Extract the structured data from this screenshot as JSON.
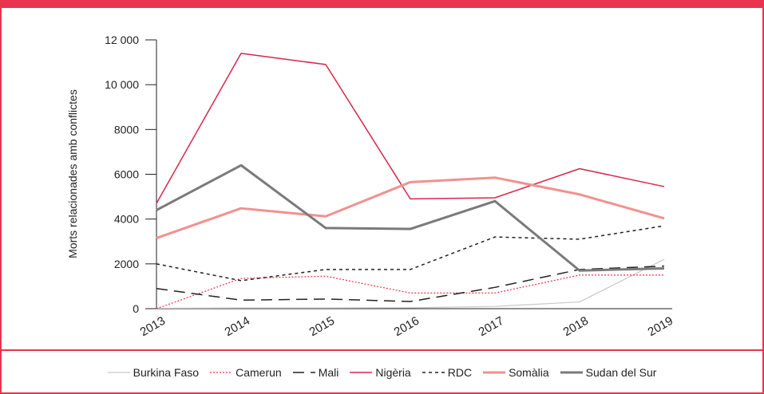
{
  "chart_data": {
    "type": "line",
    "title": "",
    "xlabel": "",
    "ylabel": "Morts relacionades amb conflictes",
    "x": [
      "2013",
      "2014",
      "2015",
      "2016",
      "2017",
      "2018",
      "2019"
    ],
    "ylim": [
      0,
      12000
    ],
    "yticks": [
      0,
      2000,
      4000,
      6000,
      8000,
      10000,
      12000
    ],
    "ytick_labels": [
      "0",
      "2000",
      "4000",
      "6000",
      "8000",
      "10 000",
      "12 000"
    ],
    "grid": false,
    "legend_position": "bottom",
    "series": [
      {
        "name": "Burkina Faso",
        "values": [
          20,
          30,
          30,
          40,
          100,
          300,
          2200
        ],
        "color": "#c8c8c8",
        "style": "solid-thin"
      },
      {
        "name": "Camerun",
        "values": [
          0,
          1350,
          1450,
          700,
          700,
          1500,
          1500
        ],
        "color": "#e8344e",
        "style": "dotted"
      },
      {
        "name": "Mali",
        "values": [
          900,
          380,
          430,
          320,
          950,
          1750,
          1900
        ],
        "color": "#222222",
        "style": "long-dash"
      },
      {
        "name": "Nigèria",
        "values": [
          4700,
          11400,
          10900,
          4900,
          4950,
          6250,
          5450
        ],
        "color": "#d8264a",
        "style": "solid"
      },
      {
        "name": "RDC",
        "values": [
          2000,
          1250,
          1750,
          1750,
          3200,
          3100,
          3700
        ],
        "color": "#222222",
        "style": "short-dash"
      },
      {
        "name": "Somàlia",
        "values": [
          3150,
          4480,
          4120,
          5650,
          5850,
          5100,
          4030
        ],
        "color": "#f0928f",
        "style": "thick"
      },
      {
        "name": "Sudan del Sur",
        "values": [
          4400,
          6400,
          3600,
          3560,
          4800,
          1700,
          1800
        ],
        "color": "#7a7a7a",
        "style": "thick"
      }
    ]
  },
  "colors": {
    "accent": "#e8344e"
  }
}
